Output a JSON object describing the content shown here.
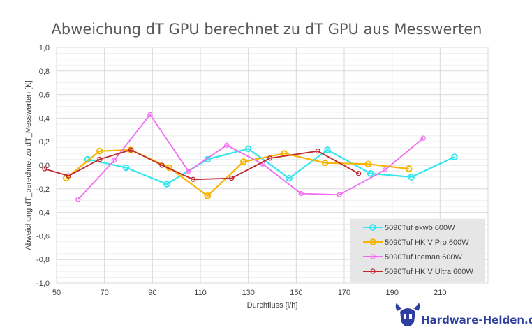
{
  "chart_data": {
    "type": "line",
    "title": "Abweichung dT GPU berechnet zu dT GPU aus Messwerten",
    "xlabel": "Durchfluss [l/h]",
    "ylabel": "Abweichung dT_berechnet zu dT_Messwerten  [K]",
    "xlim": [
      50,
      230
    ],
    "ylim": [
      -1.0,
      1.0
    ],
    "xticks": [
      "50",
      "70",
      "90",
      "110",
      "130",
      "150",
      "170",
      "190",
      "210"
    ],
    "yticks": [
      "1,0",
      "0,8",
      "0,6",
      "0,4",
      "0,2",
      "0,0",
      "-0,2",
      "-0,4",
      "-0,6",
      "-0,8",
      "-1,0"
    ],
    "grid": true,
    "legend_position": "bottom-right",
    "series": [
      {
        "name": "5090Tuf ekwb 600W",
        "color": "#33e6f0",
        "marker_size": "large",
        "points": [
          [
            63,
            0.05
          ],
          [
            79,
            -0.02
          ],
          [
            96,
            -0.16
          ],
          [
            113,
            0.05
          ],
          [
            130,
            0.14
          ],
          [
            147,
            -0.11
          ],
          [
            163,
            0.13
          ],
          [
            181,
            -0.07
          ],
          [
            198,
            -0.1
          ],
          [
            216,
            0.07
          ]
        ]
      },
      {
        "name": "5090Tuf HK V Pro 600W",
        "color": "#f7b500",
        "marker_size": "large",
        "points": [
          [
            54,
            -0.11
          ],
          [
            68,
            0.12
          ],
          [
            81,
            0.13
          ],
          [
            97,
            -0.02
          ],
          [
            113,
            -0.26
          ],
          [
            128,
            0.03
          ],
          [
            145,
            0.1
          ],
          [
            162,
            0.02
          ],
          [
            180,
            0.01
          ],
          [
            197,
            -0.03
          ]
        ]
      },
      {
        "name": "5090Tuf Iceman 600W",
        "color": "#ef6cf0",
        "marker_size": "small",
        "points": [
          [
            59,
            -0.29
          ],
          [
            74,
            0.04
          ],
          [
            89,
            0.43
          ],
          [
            105,
            -0.05
          ],
          [
            121,
            0.17
          ],
          [
            136,
            0.01
          ],
          [
            152,
            -0.24
          ],
          [
            168,
            -0.25
          ],
          [
            187,
            -0.04
          ],
          [
            203,
            0.23
          ]
        ]
      },
      {
        "name": "5090Tuf HK V Ultra 600W",
        "color": "#c0272d",
        "marker_size": "small",
        "points": [
          [
            45,
            -0.03
          ],
          [
            55,
            -0.09
          ],
          [
            68,
            0.05
          ],
          [
            81,
            0.13
          ],
          [
            94,
            0.0
          ],
          [
            107,
            -0.12
          ],
          [
            123,
            -0.11
          ],
          [
            139,
            0.06
          ],
          [
            159,
            0.12
          ],
          [
            176,
            -0.07
          ]
        ]
      }
    ]
  },
  "watermark": {
    "text": "Hardware-Helden.de",
    "icon": "horned-helmet-icon",
    "color": "#2f3fa0"
  }
}
